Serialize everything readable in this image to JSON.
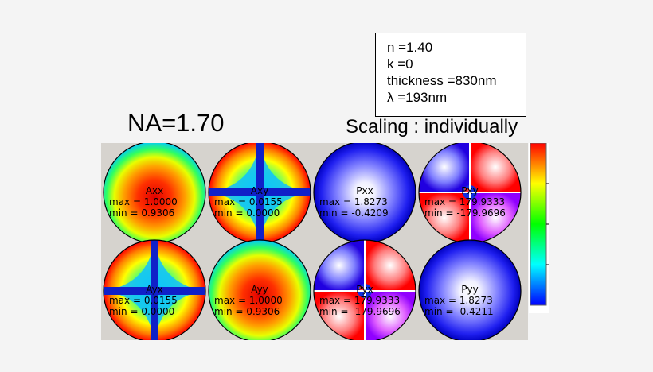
{
  "parameters": {
    "n": "n  =1.40",
    "k": "k  =0",
    "thickness": "thickness  =830nm",
    "lambda": "λ  =193nm"
  },
  "na_label": "NA=1.70",
  "scaling_label": "Scaling : individually",
  "maps": [
    {
      "name": "Axx",
      "max": "max = 1.0000",
      "min": "min = 0.9306",
      "pattern": "radial-jet"
    },
    {
      "name": "Axy",
      "max": "max = 0.0155",
      "min": "min = 0.0000",
      "pattern": "cross-jet"
    },
    {
      "name": "Pxx",
      "max": "max = 1.8273",
      "min": "min = -0.4209",
      "pattern": "radial-blue"
    },
    {
      "name": "Pxy",
      "max": "max = 179.9333",
      "min": "min = -179.9696",
      "pattern": "quadrant-phase"
    },
    {
      "name": "Ayx",
      "max": "max = 0.0155",
      "min": "min = 0.0000",
      "pattern": "cross-jet"
    },
    {
      "name": "Ayy",
      "max": "max = 1.0000",
      "min": "min = 0.9306",
      "pattern": "radial-jet"
    },
    {
      "name": "Pyx",
      "max": "max = 179.9333",
      "min": "min = -179.9696",
      "pattern": "quadrant-phase"
    },
    {
      "name": "Pyy",
      "max": "max = 1.8273",
      "min": "min = -0.4211",
      "pattern": "radial-blue"
    }
  ],
  "colorbar_colors": [
    "#ff0000",
    "#ffff00",
    "#00ff00",
    "#00ffff",
    "#0000ff"
  ]
}
